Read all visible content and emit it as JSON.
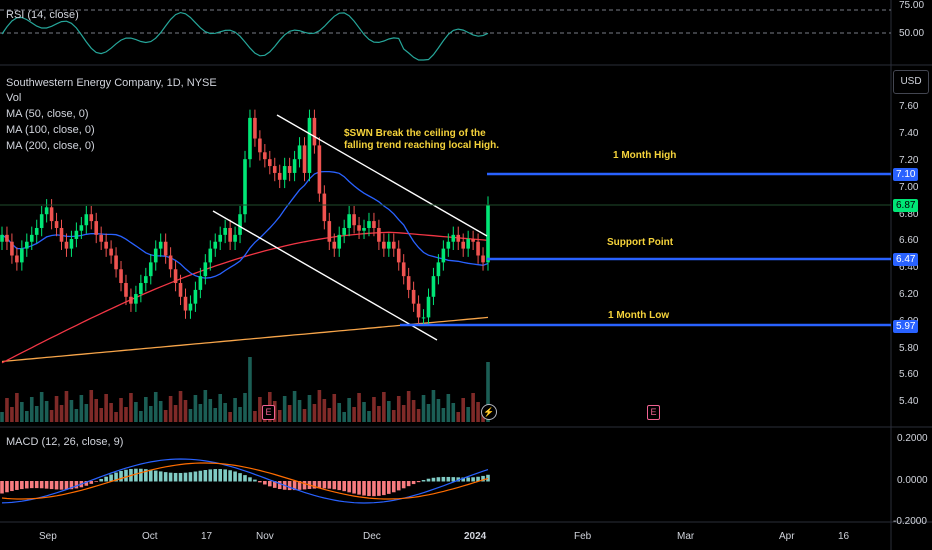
{
  "colors": {
    "up": "#26a69a",
    "up_bright": "#00e676",
    "down": "#ef5350",
    "ma50": "#2962ff",
    "ma100": "#f23645",
    "ma200": "#f7a54a",
    "rsi": "#26a69a",
    "level": "#2962ff",
    "annotation": "#f5d33b",
    "trendline": "#ffffff"
  },
  "rsi_panel": {
    "title": "RSI (14, close)",
    "axis_labels": [
      "75.00",
      "50.00"
    ]
  },
  "main_panel": {
    "title": "Southwestern Energy Company, 1D, NYSE",
    "indicators": [
      "Vol",
      "MA (50, close, 0)",
      "MA (100, close, 0)",
      "MA (200, close, 0)"
    ],
    "currency": "USD",
    "axis_labels": [
      "7.60",
      "7.40",
      "7.20",
      "7.00",
      "6.80",
      "6.60",
      "6.40",
      "6.20",
      "6.00",
      "5.80",
      "5.60",
      "5.40"
    ],
    "annotation": [
      "$SWN Break the ceiling of the",
      "falling trend reaching local High."
    ],
    "levels": [
      {
        "label": "1 Month High",
        "price": "7.10"
      },
      {
        "label": "Support Point",
        "price": "6.47"
      },
      {
        "label": "1 Month Low",
        "price": "5.97"
      }
    ],
    "last_price": "6.87",
    "earnings_badge": "E",
    "flash_badge": "⚡"
  },
  "macd_panel": {
    "title": "MACD (12, 26, close, 9)",
    "axis_labels": [
      "0.2000",
      "0.0000",
      "-0.2000"
    ]
  },
  "time_axis": {
    "labels": [
      "Sep",
      "Oct",
      "17",
      "Nov",
      "Dec",
      "2024",
      "Feb",
      "Mar",
      "Apr",
      "16"
    ]
  },
  "chart_data": {
    "type": "candlestick",
    "title": "Southwestern Energy Company, 1D, NYSE",
    "ylim": [
      5.3,
      7.75
    ],
    "closes": [
      6.65,
      6.6,
      6.5,
      6.45,
      6.55,
      6.6,
      6.65,
      6.7,
      6.8,
      6.85,
      6.75,
      6.7,
      6.6,
      6.55,
      6.62,
      6.68,
      6.72,
      6.8,
      6.75,
      6.65,
      6.6,
      6.55,
      6.5,
      6.4,
      6.3,
      6.2,
      6.15,
      6.22,
      6.3,
      6.35,
      6.45,
      6.55,
      6.6,
      6.5,
      6.4,
      6.3,
      6.2,
      6.1,
      6.15,
      6.25,
      6.35,
      6.45,
      6.55,
      6.6,
      6.65,
      6.7,
      6.6,
      6.65,
      6.8,
      7.2,
      7.5,
      7.35,
      7.25,
      7.2,
      7.15,
      7.1,
      7.05,
      7.15,
      7.1,
      7.2,
      7.3,
      7.1,
      7.5,
      7.3,
      6.95,
      6.75,
      6.6,
      6.55,
      6.65,
      6.7,
      6.8,
      6.72,
      6.68,
      6.7,
      6.75,
      6.7,
      6.6,
      6.55,
      6.6,
      6.55,
      6.45,
      6.35,
      6.25,
      6.15,
      6.05,
      6.05,
      6.2,
      6.35,
      6.45,
      6.55,
      6.6,
      6.65,
      6.6,
      6.55,
      6.62,
      6.6,
      6.5,
      6.45,
      6.87
    ],
    "ma_note": "MA lines drawn as smoothed series",
    "levels": [
      7.1,
      6.47,
      5.97
    ]
  }
}
